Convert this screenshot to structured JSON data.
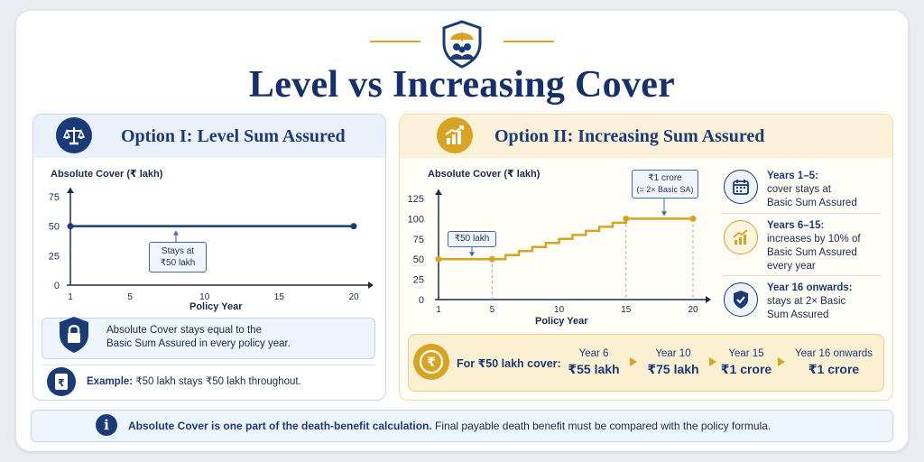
{
  "header": {
    "title": "Level vs Increasing Cover",
    "emblem_icon": "umbrella-family-shield-icon"
  },
  "option1": {
    "title": "Option I: Level Sum Assured",
    "icon": "scales-icon",
    "chart": {
      "ylabel": "Absolute Cover (₹ lakh)",
      "xlabel": "Policy Year",
      "y_ticks": [
        "75",
        "50",
        "25",
        "0"
      ],
      "x_ticks": [
        "1",
        "5",
        "10",
        "15",
        "20"
      ],
      "callout_line1": "Stays at",
      "callout_line2": "₹50 lakh"
    },
    "note_line1": "Absolute Cover stays equal to the",
    "note_line2": "Basic Sum Assured in every policy year.",
    "note_icon": "lock-shield-icon",
    "example_label": "Example:",
    "example_text": " ₹50 lakh stays ₹50 lakh throughout.",
    "example_icon": "rupee-document-icon"
  },
  "option2": {
    "title": "Option II: Increasing Sum Assured",
    "icon": "rising-chart-icon",
    "chart": {
      "ylabel": "Absolute Cover (₹ lakh)",
      "xlabel": "Policy Year",
      "y_ticks": [
        "125",
        "100",
        "75",
        "50",
        "25",
        "0"
      ],
      "x_ticks": [
        "1",
        "5",
        "10",
        "15",
        "20"
      ],
      "callout_start": "₹50 lakh",
      "callout_end_line1": "₹1 crore",
      "callout_end_line2": "(= 2× Basic SA)"
    },
    "rules": [
      {
        "icon": "calendar-icon",
        "heading": "Years 1–5:",
        "lines": [
          "cover stays at",
          "Basic Sum Assured"
        ]
      },
      {
        "icon": "growth-chart-icon",
        "heading": "Years 6–15:",
        "lines": [
          "increases by 10% of",
          "Basic Sum Assured",
          "every year"
        ]
      },
      {
        "icon": "shield-check-icon",
        "heading": "Year 16 onwards:",
        "lines": [
          "stays at 2× Basic",
          "Sum Assured"
        ]
      }
    ],
    "example": {
      "icon": "rupee-coin-icon",
      "label": "For ₹50 lakh cover:",
      "items": [
        {
          "year": "Year 6",
          "value": "₹55 lakh"
        },
        {
          "year": "Year 10",
          "value": "₹75 lakh"
        },
        {
          "year": "Year 15",
          "value": "₹1 crore"
        },
        {
          "year": "Year 16 onwards",
          "value": "₹1 crore"
        }
      ]
    }
  },
  "footer": {
    "icon": "info-icon",
    "bold": "Absolute Cover is one part of the death-benefit calculation.",
    "text": " Final payable death benefit must be compared with the policy formula."
  },
  "chart_data": [
    {
      "type": "line",
      "title": "Option I: Level Sum Assured",
      "xlabel": "Policy Year",
      "ylabel": "Absolute Cover (₹ lakh)",
      "ylim": [
        0,
        75
      ],
      "xlim": [
        1,
        20
      ],
      "x": [
        1,
        20
      ],
      "series": [
        {
          "values": [
            50,
            50
          ]
        }
      ]
    },
    {
      "type": "line",
      "title": "Option II: Increasing Sum Assured",
      "xlabel": "Policy Year",
      "ylabel": "Absolute Cover (₹ lakh)",
      "ylim": [
        0,
        125
      ],
      "xlim": [
        1,
        20
      ],
      "x": [
        1,
        5,
        6,
        7,
        8,
        9,
        10,
        11,
        12,
        13,
        14,
        15,
        20
      ],
      "series": [
        {
          "values": [
            50,
            50,
            55,
            60,
            65,
            70,
            75,
            80,
            85,
            90,
            95,
            100,
            100
          ]
        }
      ]
    }
  ]
}
